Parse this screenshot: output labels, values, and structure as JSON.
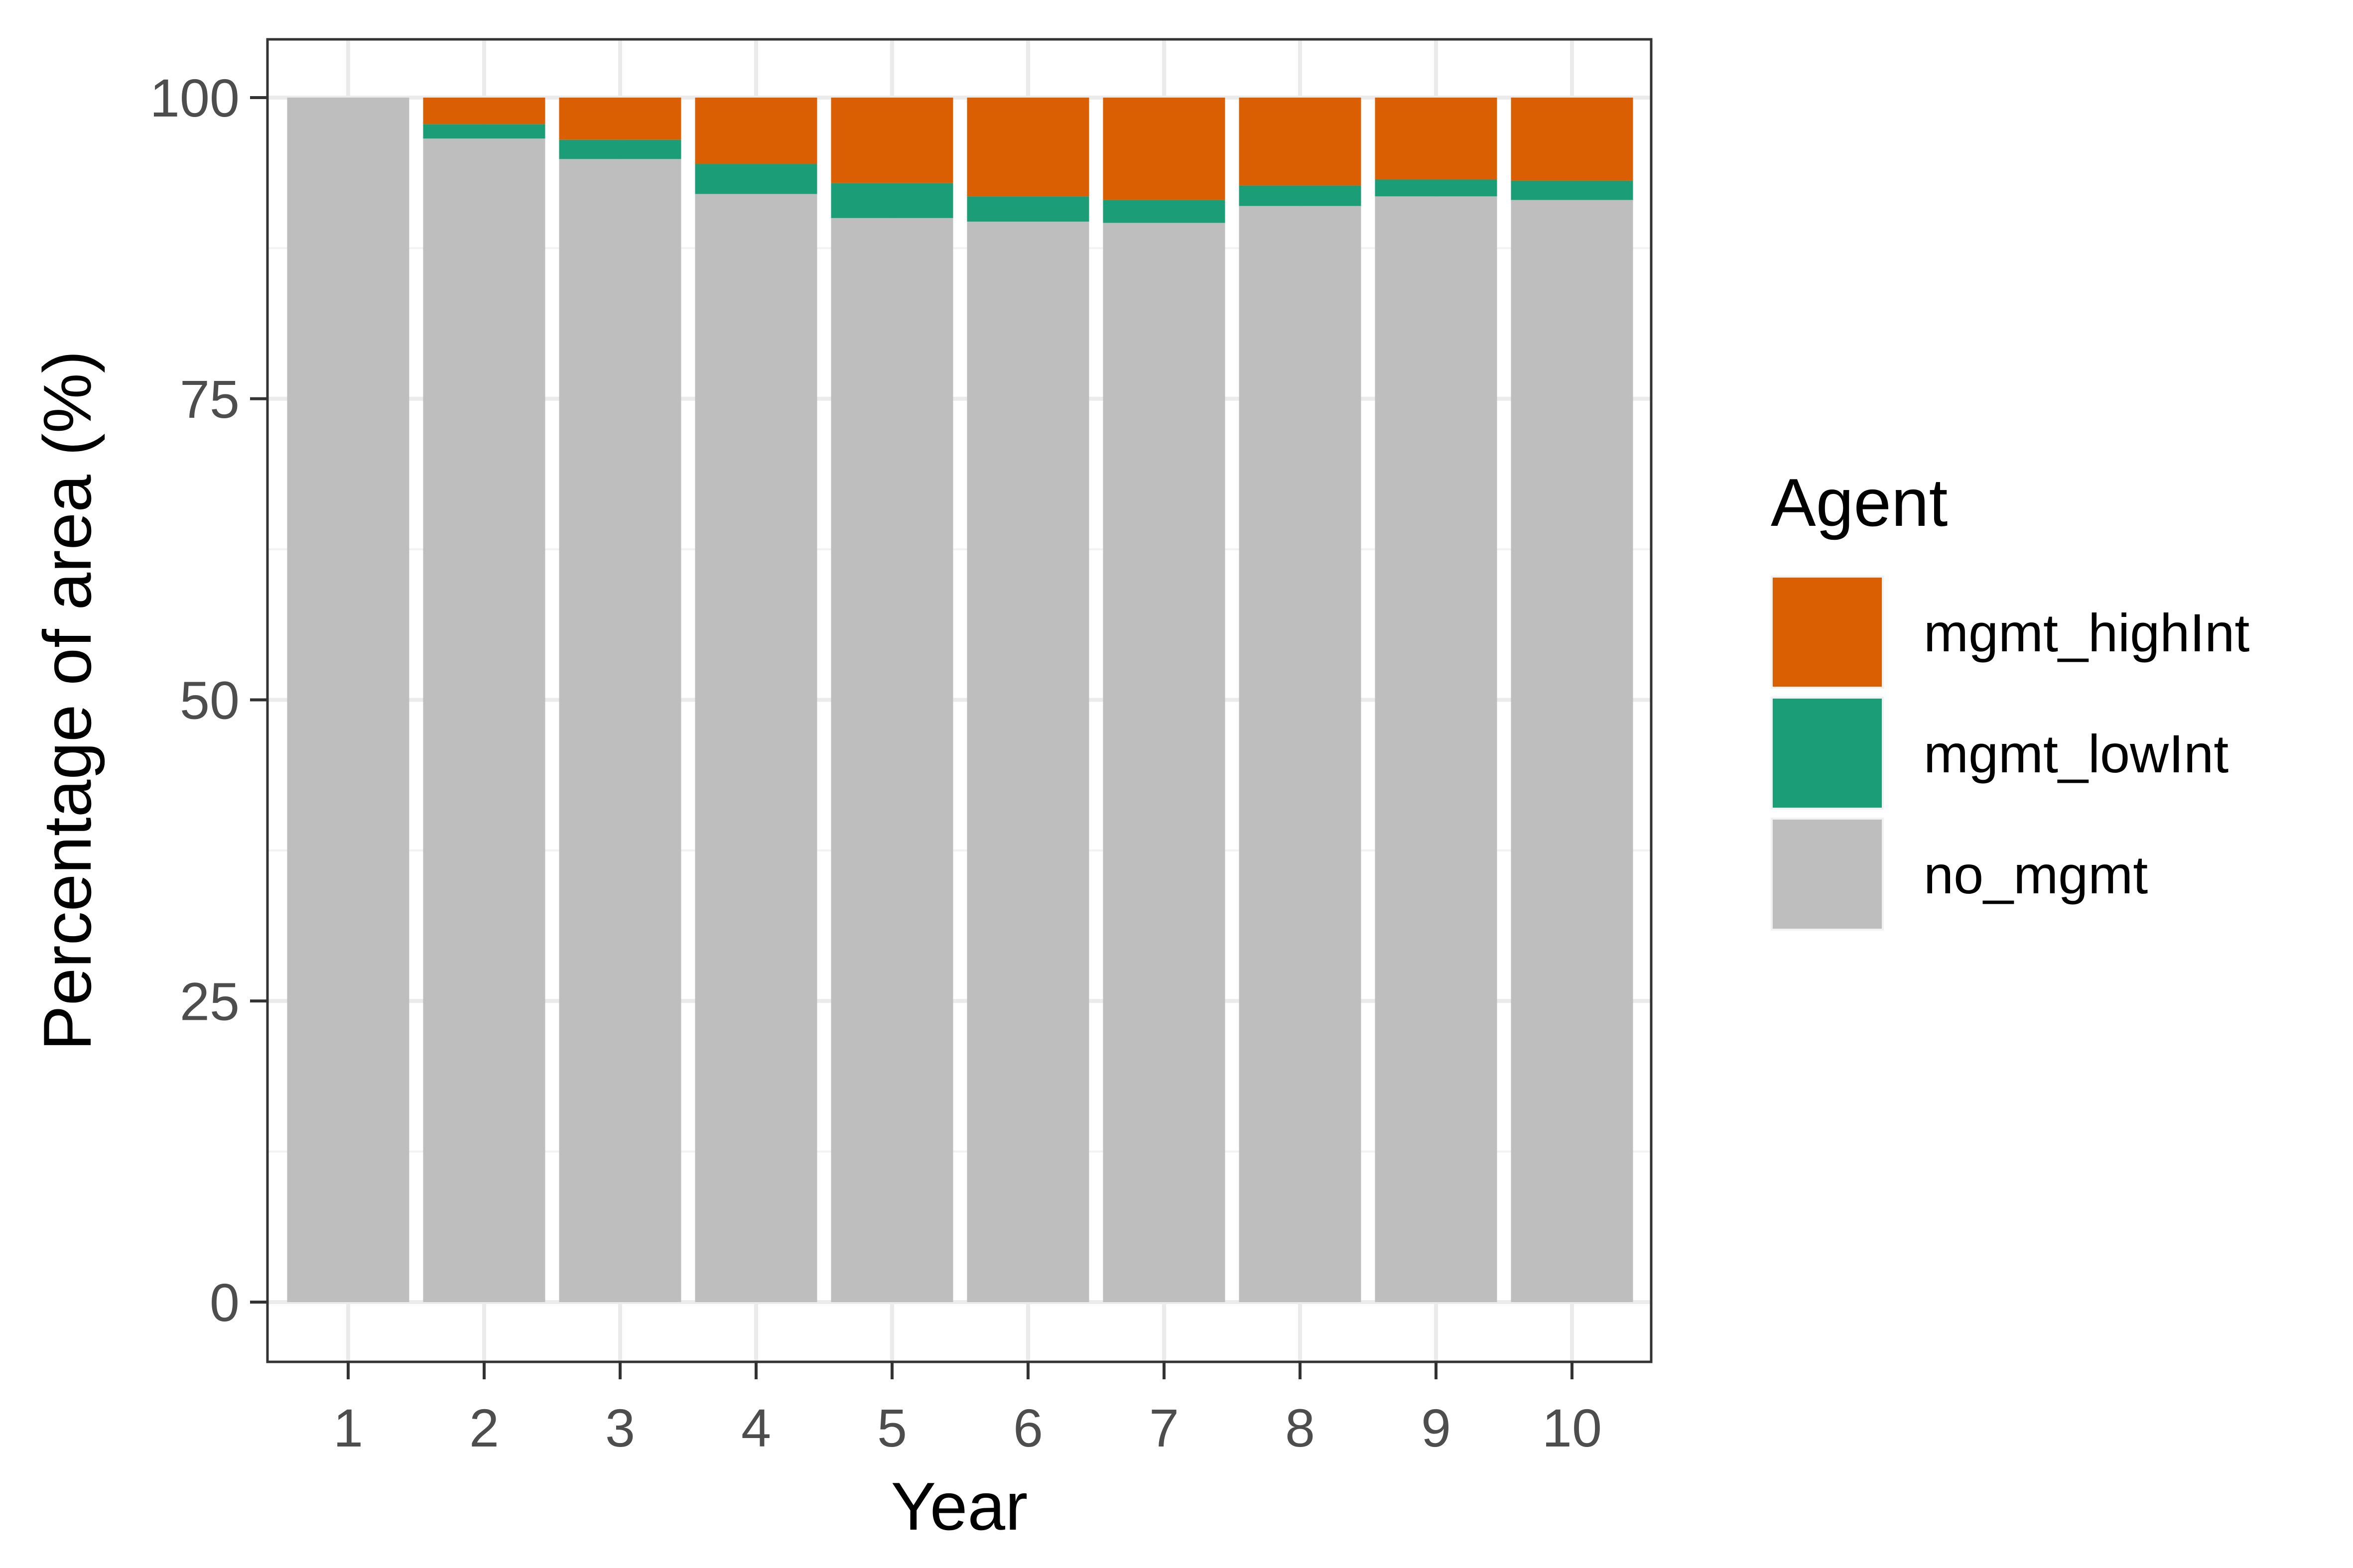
{
  "chart_data": {
    "type": "bar",
    "stacked": true,
    "title": "",
    "xlabel": "Year",
    "ylabel": "Percentage of area (%)",
    "categories": [
      "1",
      "2",
      "3",
      "4",
      "5",
      "6",
      "7",
      "8",
      "9",
      "10"
    ],
    "ylim": [
      0,
      100
    ],
    "yticks": [
      0,
      25,
      50,
      75,
      100
    ],
    "grid": true,
    "legend": {
      "title": "Agent",
      "position": "right",
      "entries": [
        "mgmt_highInt",
        "mgmt_lowInt",
        "no_mgmt"
      ]
    },
    "series": [
      {
        "name": "no_mgmt",
        "color": "#bebebe",
        "values": [
          100,
          96.6,
          94.9,
          92.0,
          90.0,
          89.7,
          89.6,
          91.0,
          91.8,
          91.5
        ]
      },
      {
        "name": "mgmt_lowInt",
        "color": "#1b9e77",
        "values": [
          0,
          1.2,
          1.6,
          2.5,
          2.9,
          2.1,
          1.9,
          1.7,
          1.4,
          1.6
        ]
      },
      {
        "name": "mgmt_highInt",
        "color": "#d95f02",
        "values": [
          0,
          2.2,
          3.5,
          5.5,
          7.1,
          8.2,
          8.5,
          7.3,
          6.8,
          6.9
        ]
      }
    ]
  }
}
